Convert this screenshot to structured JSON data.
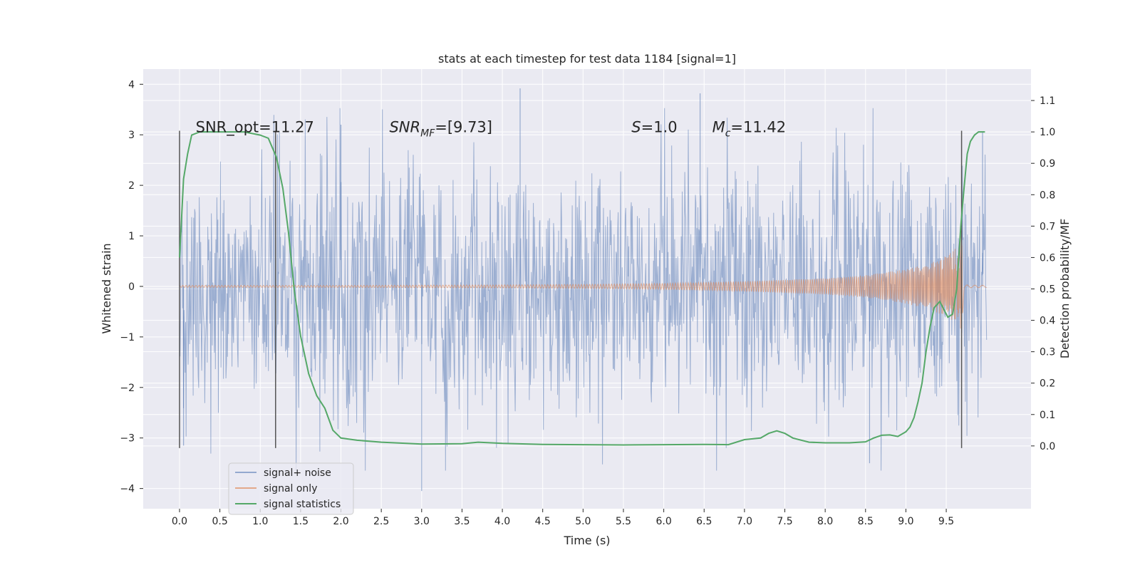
{
  "chart_data": {
    "type": "line",
    "title": "stats at each timestep for test data 1184 [signal=1]",
    "xlabel": "Time (s)",
    "ylabel": "Whitened strain",
    "y2label": "Detection probability/MF",
    "xlim": [
      -0.45,
      10.55
    ],
    "ylim": [
      -4.4,
      4.3
    ],
    "y2lim": [
      -0.2,
      1.2
    ],
    "x_ticks": [
      "0.0",
      "0.5",
      "1.0",
      "1.5",
      "2.0",
      "2.5",
      "3.0",
      "3.5",
      "4.0",
      "4.5",
      "5.0",
      "5.5",
      "6.0",
      "6.5",
      "7.0",
      "7.5",
      "8.0",
      "8.5",
      "9.0",
      "9.5"
    ],
    "y_ticks": [
      "4",
      "3",
      "2",
      "1",
      "0",
      "−1",
      "−2",
      "−3",
      "−4"
    ],
    "y2_ticks": [
      "1.1",
      "1.0",
      "0.9",
      "0.8",
      "0.7",
      "0.6",
      "0.5",
      "0.4",
      "0.3",
      "0.2",
      "0.1",
      "0.0"
    ],
    "grid": true,
    "legend_position": "lower-left",
    "colors": {
      "plot_bg": "#eaeaf2",
      "grid": "#ffffff",
      "noise": "#4c72b0",
      "signal": "#dd8452",
      "stats": "#55a868",
      "vlines": "#555555"
    },
    "annotations": [
      {
        "text": "SNR_opt=11.27",
        "x": 0.2,
        "y": 3.05
      },
      {
        "text": "SNR",
        "sub": "MF",
        "suffix": "=[9.73]",
        "x": 2.6,
        "y": 3.05
      },
      {
        "text": "S",
        "suffix": "=1.0",
        "x": 5.6,
        "y": 3.05
      },
      {
        "text": "M",
        "sub": "c",
        "suffix": "=11.42",
        "x": 6.6,
        "y": 3.05
      }
    ],
    "vlines": [
      {
        "x": 0.0,
        "ymin": -3.2,
        "ymax": 3.08
      },
      {
        "x": 1.19,
        "ymin": -3.2,
        "ymax": 3.08
      },
      {
        "x": 9.69,
        "ymin": -3.2,
        "ymax": 3.08
      }
    ],
    "series": [
      {
        "name": "signal+ noise",
        "axis": "left",
        "kind": "noise_band",
        "x_range": [
          0.0,
          10.0
        ],
        "typical_band": [
          -1.9,
          1.9
        ],
        "max_spike": 3.92,
        "min_spike": -4.05
      },
      {
        "name": "signal only",
        "axis": "left",
        "kind": "chirp",
        "x_range": [
          0.0,
          10.0
        ],
        "envelope_x": [
          0.0,
          2.0,
          4.0,
          5.0,
          6.0,
          7.0,
          8.0,
          8.5,
          9.0,
          9.3,
          9.5,
          9.6,
          9.65,
          9.69,
          9.72,
          10.0
        ],
        "envelope_y": [
          0.02,
          0.02,
          0.03,
          0.04,
          0.06,
          0.1,
          0.16,
          0.22,
          0.34,
          0.46,
          0.6,
          0.72,
          0.85,
          1.05,
          0.03,
          0.02
        ]
      },
      {
        "name": "signal statistics",
        "axis": "right",
        "kind": "line",
        "x": [
          0.0,
          0.05,
          0.1,
          0.15,
          0.25,
          0.5,
          0.8,
          1.0,
          1.1,
          1.15,
          1.2,
          1.28,
          1.35,
          1.42,
          1.5,
          1.6,
          1.7,
          1.8,
          1.9,
          2.0,
          2.2,
          2.5,
          3.0,
          3.5,
          3.7,
          4.0,
          4.5,
          5.0,
          5.5,
          6.0,
          6.5,
          6.8,
          7.0,
          7.2,
          7.3,
          7.4,
          7.5,
          7.6,
          7.8,
          8.0,
          8.3,
          8.5,
          8.6,
          8.7,
          8.8,
          8.9,
          9.0,
          9.05,
          9.1,
          9.15,
          9.2,
          9.25,
          9.3,
          9.35,
          9.42,
          9.52,
          9.58,
          9.63,
          9.68,
          9.72,
          9.76,
          9.8,
          9.85,
          9.9,
          9.95,
          9.98
        ],
        "y": [
          0.6,
          0.85,
          0.93,
          0.99,
          1.0,
          1.0,
          1.0,
          0.99,
          0.98,
          0.95,
          0.92,
          0.82,
          0.68,
          0.5,
          0.35,
          0.23,
          0.16,
          0.12,
          0.05,
          0.025,
          0.018,
          0.012,
          0.006,
          0.007,
          0.012,
          0.008,
          0.005,
          0.004,
          0.003,
          0.004,
          0.005,
          0.004,
          0.02,
          0.025,
          0.04,
          0.048,
          0.04,
          0.025,
          0.012,
          0.01,
          0.01,
          0.013,
          0.025,
          0.034,
          0.035,
          0.03,
          0.045,
          0.06,
          0.09,
          0.14,
          0.2,
          0.3,
          0.38,
          0.44,
          0.46,
          0.41,
          0.42,
          0.5,
          0.7,
          0.82,
          0.93,
          0.97,
          0.99,
          1.0,
          1.0,
          1.0
        ]
      }
    ]
  }
}
